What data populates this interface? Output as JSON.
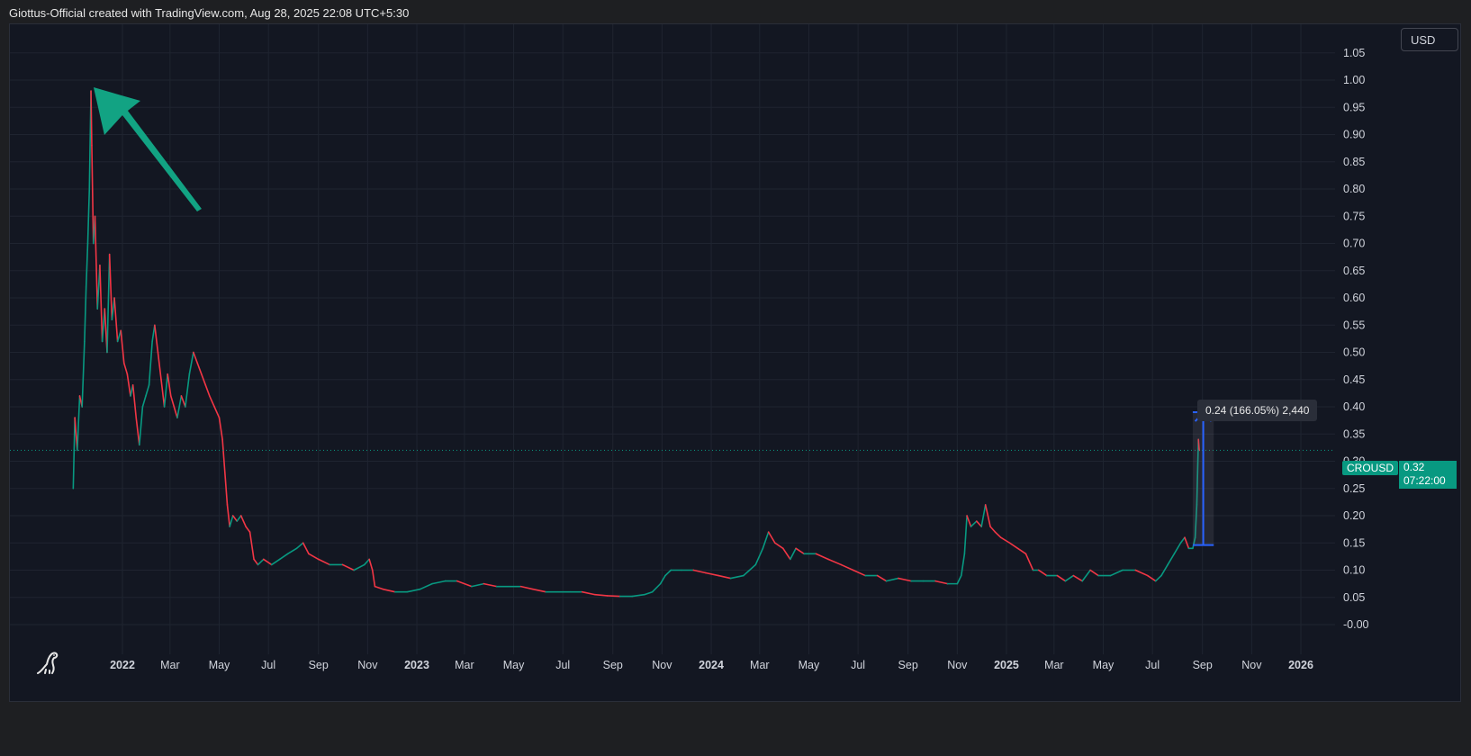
{
  "header": {
    "text": "Giottus-Official created with TradingView.com, Aug 28, 2025 22:08 UTC+5:30"
  },
  "toolbar": {
    "currency_label": "USD"
  },
  "logo": {
    "icon": "tradingview-dino-icon"
  },
  "chart_data": {
    "type": "line",
    "symbol": "CROUSD",
    "currency": "USD",
    "y_axis": {
      "ticks": [
        "1.05",
        "1.00",
        "0.95",
        "0.90",
        "0.85",
        "0.80",
        "0.75",
        "0.70",
        "0.65",
        "0.60",
        "0.55",
        "0.50",
        "0.45",
        "0.40",
        "0.35",
        "0.30",
        "0.25",
        "0.20",
        "0.15",
        "0.10",
        "0.05",
        "-0.00"
      ],
      "ylim": [
        -0.02,
        1.06
      ]
    },
    "x_axis": {
      "ticks": [
        {
          "label": "2022",
          "date": "2022-01-01",
          "bold": true
        },
        {
          "label": "Mar",
          "date": "2022-03-01"
        },
        {
          "label": "May",
          "date": "2022-05-01"
        },
        {
          "label": "Jul",
          "date": "2022-07-01"
        },
        {
          "label": "Sep",
          "date": "2022-09-01"
        },
        {
          "label": "Nov",
          "date": "2022-11-01"
        },
        {
          "label": "2023",
          "date": "2023-01-01",
          "bold": true
        },
        {
          "label": "Mar",
          "date": "2023-03-01"
        },
        {
          "label": "May",
          "date": "2023-05-01"
        },
        {
          "label": "Jul",
          "date": "2023-07-01"
        },
        {
          "label": "Sep",
          "date": "2023-09-01"
        },
        {
          "label": "Nov",
          "date": "2023-11-01"
        },
        {
          "label": "2024",
          "date": "2024-01-01",
          "bold": true
        },
        {
          "label": "Mar",
          "date": "2024-03-01"
        },
        {
          "label": "May",
          "date": "2024-05-01"
        },
        {
          "label": "Jul",
          "date": "2024-07-01"
        },
        {
          "label": "Sep",
          "date": "2024-09-01"
        },
        {
          "label": "Nov",
          "date": "2024-11-01"
        },
        {
          "label": "2025",
          "date": "2025-01-01",
          "bold": true
        },
        {
          "label": "Mar",
          "date": "2025-03-01"
        },
        {
          "label": "May",
          "date": "2025-05-01"
        },
        {
          "label": "Jul",
          "date": "2025-07-01"
        },
        {
          "label": "Sep",
          "date": "2025-09-01"
        },
        {
          "label": "Nov",
          "date": "2025-11-01"
        },
        {
          "label": "2026",
          "date": "2026-01-01",
          "bold": true
        }
      ]
    },
    "series": [
      {
        "points": [
          [
            "2021-11-01",
            0.25
          ],
          [
            "2021-11-03",
            0.38
          ],
          [
            "2021-11-06",
            0.32
          ],
          [
            "2021-11-09",
            0.42
          ],
          [
            "2021-11-12",
            0.4
          ],
          [
            "2021-11-15",
            0.52
          ],
          [
            "2021-11-17",
            0.62
          ],
          [
            "2021-11-19",
            0.7
          ],
          [
            "2021-11-21",
            0.8
          ],
          [
            "2021-11-23",
            0.98
          ],
          [
            "2021-11-24",
            0.88
          ],
          [
            "2021-11-26",
            0.7
          ],
          [
            "2021-11-28",
            0.75
          ],
          [
            "2021-12-01",
            0.58
          ],
          [
            "2021-12-04",
            0.66
          ],
          [
            "2021-12-07",
            0.52
          ],
          [
            "2021-12-10",
            0.58
          ],
          [
            "2021-12-13",
            0.5
          ],
          [
            "2021-12-16",
            0.68
          ],
          [
            "2021-12-19",
            0.56
          ],
          [
            "2021-12-22",
            0.6
          ],
          [
            "2021-12-26",
            0.52
          ],
          [
            "2021-12-30",
            0.54
          ],
          [
            "2022-01-03",
            0.48
          ],
          [
            "2022-01-07",
            0.46
          ],
          [
            "2022-01-11",
            0.42
          ],
          [
            "2022-01-14",
            0.44
          ],
          [
            "2022-01-18",
            0.38
          ],
          [
            "2022-01-22",
            0.33
          ],
          [
            "2022-01-26",
            0.4
          ],
          [
            "2022-01-30",
            0.42
          ],
          [
            "2022-02-03",
            0.44
          ],
          [
            "2022-02-07",
            0.52
          ],
          [
            "2022-02-10",
            0.55
          ],
          [
            "2022-02-14",
            0.5
          ],
          [
            "2022-02-18",
            0.45
          ],
          [
            "2022-02-22",
            0.4
          ],
          [
            "2022-02-26",
            0.46
          ],
          [
            "2022-03-02",
            0.42
          ],
          [
            "2022-03-06",
            0.4
          ],
          [
            "2022-03-10",
            0.38
          ],
          [
            "2022-03-15",
            0.42
          ],
          [
            "2022-03-20",
            0.4
          ],
          [
            "2022-03-25",
            0.46
          ],
          [
            "2022-03-30",
            0.5
          ],
          [
            "2022-04-04",
            0.48
          ],
          [
            "2022-04-09",
            0.46
          ],
          [
            "2022-04-14",
            0.44
          ],
          [
            "2022-04-19",
            0.42
          ],
          [
            "2022-04-25",
            0.4
          ],
          [
            "2022-05-01",
            0.38
          ],
          [
            "2022-05-05",
            0.34
          ],
          [
            "2022-05-08",
            0.28
          ],
          [
            "2022-05-11",
            0.22
          ],
          [
            "2022-05-14",
            0.18
          ],
          [
            "2022-05-18",
            0.2
          ],
          [
            "2022-05-23",
            0.19
          ],
          [
            "2022-05-28",
            0.2
          ],
          [
            "2022-06-03",
            0.18
          ],
          [
            "2022-06-08",
            0.17
          ],
          [
            "2022-06-13",
            0.12
          ],
          [
            "2022-06-18",
            0.11
          ],
          [
            "2022-06-25",
            0.12
          ],
          [
            "2022-07-05",
            0.11
          ],
          [
            "2022-07-15",
            0.12
          ],
          [
            "2022-07-25",
            0.13
          ],
          [
            "2022-08-05",
            0.14
          ],
          [
            "2022-08-13",
            0.15
          ],
          [
            "2022-08-20",
            0.13
          ],
          [
            "2022-09-01",
            0.12
          ],
          [
            "2022-09-15",
            0.11
          ],
          [
            "2022-10-01",
            0.11
          ],
          [
            "2022-10-15",
            0.1
          ],
          [
            "2022-10-28",
            0.11
          ],
          [
            "2022-11-03",
            0.12
          ],
          [
            "2022-11-07",
            0.1
          ],
          [
            "2022-11-10",
            0.07
          ],
          [
            "2022-11-20",
            0.065
          ],
          [
            "2022-12-05",
            0.06
          ],
          [
            "2022-12-20",
            0.06
          ],
          [
            "2023-01-05",
            0.065
          ],
          [
            "2023-01-20",
            0.075
          ],
          [
            "2023-02-05",
            0.08
          ],
          [
            "2023-02-20",
            0.08
          ],
          [
            "2023-03-10",
            0.07
          ],
          [
            "2023-03-25",
            0.075
          ],
          [
            "2023-04-10",
            0.07
          ],
          [
            "2023-04-25",
            0.07
          ],
          [
            "2023-05-10",
            0.07
          ],
          [
            "2023-05-25",
            0.065
          ],
          [
            "2023-06-10",
            0.06
          ],
          [
            "2023-06-25",
            0.06
          ],
          [
            "2023-07-10",
            0.06
          ],
          [
            "2023-07-25",
            0.06
          ],
          [
            "2023-08-10",
            0.055
          ],
          [
            "2023-08-25",
            0.053
          ],
          [
            "2023-09-10",
            0.052
          ],
          [
            "2023-09-25",
            0.052
          ],
          [
            "2023-10-10",
            0.055
          ],
          [
            "2023-10-20",
            0.06
          ],
          [
            "2023-10-30",
            0.075
          ],
          [
            "2023-11-05",
            0.09
          ],
          [
            "2023-11-12",
            0.1
          ],
          [
            "2023-11-25",
            0.1
          ],
          [
            "2023-12-10",
            0.1
          ],
          [
            "2023-12-25",
            0.095
          ],
          [
            "2024-01-10",
            0.09
          ],
          [
            "2024-01-25",
            0.085
          ],
          [
            "2024-02-10",
            0.09
          ],
          [
            "2024-02-25",
            0.11
          ],
          [
            "2024-03-05",
            0.14
          ],
          [
            "2024-03-12",
            0.17
          ],
          [
            "2024-03-20",
            0.15
          ],
          [
            "2024-03-30",
            0.14
          ],
          [
            "2024-04-08",
            0.12
          ],
          [
            "2024-04-15",
            0.14
          ],
          [
            "2024-04-25",
            0.13
          ],
          [
            "2024-05-10",
            0.13
          ],
          [
            "2024-05-25",
            0.12
          ],
          [
            "2024-06-10",
            0.11
          ],
          [
            "2024-06-25",
            0.1
          ],
          [
            "2024-07-10",
            0.09
          ],
          [
            "2024-07-25",
            0.09
          ],
          [
            "2024-08-05",
            0.08
          ],
          [
            "2024-08-20",
            0.085
          ],
          [
            "2024-09-05",
            0.08
          ],
          [
            "2024-09-20",
            0.08
          ],
          [
            "2024-10-05",
            0.08
          ],
          [
            "2024-10-20",
            0.075
          ],
          [
            "2024-11-01",
            0.075
          ],
          [
            "2024-11-06",
            0.09
          ],
          [
            "2024-11-10",
            0.13
          ],
          [
            "2024-11-13",
            0.2
          ],
          [
            "2024-11-18",
            0.18
          ],
          [
            "2024-11-25",
            0.19
          ],
          [
            "2024-12-01",
            0.18
          ],
          [
            "2024-12-06",
            0.22
          ],
          [
            "2024-12-12",
            0.18
          ],
          [
            "2024-12-18",
            0.17
          ],
          [
            "2024-12-25",
            0.16
          ],
          [
            "2025-01-05",
            0.15
          ],
          [
            "2025-01-15",
            0.14
          ],
          [
            "2025-01-25",
            0.13
          ],
          [
            "2025-02-03",
            0.1
          ],
          [
            "2025-02-10",
            0.1
          ],
          [
            "2025-02-20",
            0.09
          ],
          [
            "2025-03-05",
            0.09
          ],
          [
            "2025-03-15",
            0.08
          ],
          [
            "2025-03-25",
            0.09
          ],
          [
            "2025-04-05",
            0.08
          ],
          [
            "2025-04-15",
            0.1
          ],
          [
            "2025-04-25",
            0.09
          ],
          [
            "2025-05-10",
            0.09
          ],
          [
            "2025-05-25",
            0.1
          ],
          [
            "2025-06-10",
            0.1
          ],
          [
            "2025-06-25",
            0.09
          ],
          [
            "2025-07-05",
            0.08
          ],
          [
            "2025-07-12",
            0.09
          ],
          [
            "2025-07-20",
            0.11
          ],
          [
            "2025-07-28",
            0.13
          ],
          [
            "2025-08-05",
            0.15
          ],
          [
            "2025-08-10",
            0.16
          ],
          [
            "2025-08-15",
            0.14
          ],
          [
            "2025-08-20",
            0.14
          ],
          [
            "2025-08-23",
            0.16
          ],
          [
            "2025-08-25",
            0.22
          ],
          [
            "2025-08-26",
            0.28
          ],
          [
            "2025-08-27",
            0.34
          ],
          [
            "2025-08-28",
            0.32
          ]
        ]
      }
    ],
    "current_price": {
      "symbol": "CROUSD",
      "value": 0.32,
      "value_label": "0.32",
      "countdown": "07:22:00"
    },
    "annotations": {
      "arrow_target": {
        "date": "2021-11-24",
        "value": 0.99
      },
      "arrow_color": "#12a383",
      "measure": {
        "date_start": "2025-08-20",
        "date_end": "2025-09-15",
        "value_from": 0.146,
        "value_to": 0.39,
        "label": "0.24 (166.05%) 2,440",
        "color": "#2962ff"
      }
    },
    "colors": {
      "up": "#089981",
      "down": "#f23645",
      "grid": "#1f2430",
      "axis_text": "#d1d4dc"
    }
  }
}
